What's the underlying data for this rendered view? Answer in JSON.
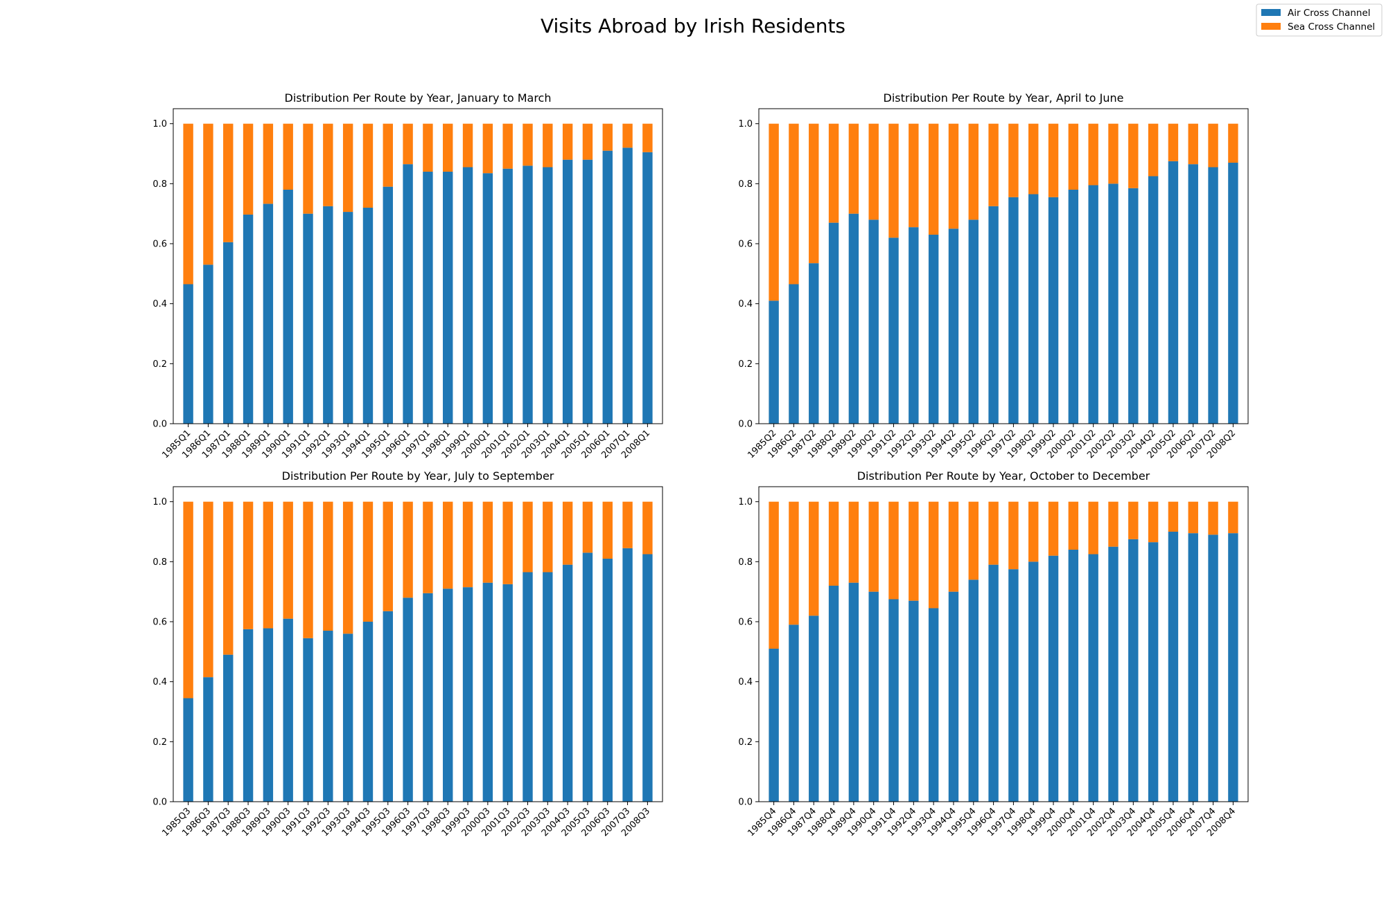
{
  "figure": {
    "title": "Visits Abroad by Irish Residents",
    "legend": {
      "placement": "top-right",
      "entries": [
        {
          "label": "Air Cross Channel",
          "color": "#1f77b4"
        },
        {
          "label": "Sea Cross Channel",
          "color": "#ff7f0e"
        }
      ]
    }
  },
  "chart_data": [
    {
      "type": "bar",
      "stacked": true,
      "title": "Distribution Per Route by Year, January to March",
      "categories": [
        "1985Q1",
        "1986Q1",
        "1987Q1",
        "1988Q1",
        "1989Q1",
        "1990Q1",
        "1991Q1",
        "1992Q1",
        "1993Q1",
        "1994Q1",
        "1995Q1",
        "1996Q1",
        "1997Q1",
        "1998Q1",
        "1999Q1",
        "2000Q1",
        "2001Q1",
        "2002Q1",
        "2003Q1",
        "2004Q1",
        "2005Q1",
        "2006Q1",
        "2007Q1",
        "2008Q1"
      ],
      "ylim": [
        0,
        1.05
      ],
      "yticks": [
        "0.0",
        "0.2",
        "0.4",
        "0.6",
        "0.8",
        "1.0"
      ],
      "series": [
        {
          "name": "Air Cross Channel",
          "color": "#1f77b4",
          "values": [
            0.465,
            0.53,
            0.605,
            0.697,
            0.733,
            0.78,
            0.7,
            0.725,
            0.706,
            0.72,
            0.79,
            0.865,
            0.84,
            0.84,
            0.855,
            0.835,
            0.85,
            0.86,
            0.855,
            0.88,
            0.88,
            0.91,
            0.92,
            0.905
          ]
        },
        {
          "name": "Sea Cross Channel",
          "color": "#ff7f0e",
          "values": [
            0.535,
            0.47,
            0.395,
            0.303,
            0.267,
            0.22,
            0.3,
            0.275,
            0.294,
            0.28,
            0.21,
            0.135,
            0.16,
            0.16,
            0.145,
            0.165,
            0.15,
            0.14,
            0.145,
            0.12,
            0.12,
            0.09,
            0.08,
            0.095
          ]
        }
      ]
    },
    {
      "type": "bar",
      "stacked": true,
      "title": "Distribution Per Route by Year, April to June",
      "categories": [
        "1985Q2",
        "1986Q2",
        "1987Q2",
        "1988Q2",
        "1989Q2",
        "1990Q2",
        "1991Q2",
        "1992Q2",
        "1993Q2",
        "1994Q2",
        "1995Q2",
        "1996Q2",
        "1997Q2",
        "1998Q2",
        "1999Q2",
        "2000Q2",
        "2001Q2",
        "2002Q2",
        "2003Q2",
        "2004Q2",
        "2005Q2",
        "2006Q2",
        "2007Q2",
        "2008Q2"
      ],
      "ylim": [
        0,
        1.05
      ],
      "yticks": [
        "0.0",
        "0.2",
        "0.4",
        "0.6",
        "0.8",
        "1.0"
      ],
      "series": [
        {
          "name": "Air Cross Channel",
          "color": "#1f77b4",
          "values": [
            0.41,
            0.465,
            0.535,
            0.67,
            0.7,
            0.68,
            0.62,
            0.655,
            0.63,
            0.65,
            0.68,
            0.725,
            0.755,
            0.765,
            0.755,
            0.78,
            0.795,
            0.8,
            0.785,
            0.825,
            0.875,
            0.865,
            0.855,
            0.87
          ]
        },
        {
          "name": "Sea Cross Channel",
          "color": "#ff7f0e",
          "values": [
            0.59,
            0.535,
            0.465,
            0.33,
            0.3,
            0.32,
            0.38,
            0.345,
            0.37,
            0.35,
            0.32,
            0.275,
            0.245,
            0.235,
            0.245,
            0.22,
            0.205,
            0.2,
            0.215,
            0.175,
            0.125,
            0.135,
            0.145,
            0.13
          ]
        }
      ]
    },
    {
      "type": "bar",
      "stacked": true,
      "title": "Distribution Per Route by Year, July to September",
      "categories": [
        "1985Q3",
        "1986Q3",
        "1987Q3",
        "1988Q3",
        "1989Q3",
        "1990Q3",
        "1991Q3",
        "1992Q3",
        "1993Q3",
        "1994Q3",
        "1995Q3",
        "1996Q3",
        "1997Q3",
        "1998Q3",
        "1999Q3",
        "2000Q3",
        "2001Q3",
        "2002Q3",
        "2003Q3",
        "2004Q3",
        "2005Q3",
        "2006Q3",
        "2007Q3",
        "2008Q3"
      ],
      "ylim": [
        0,
        1.05
      ],
      "yticks": [
        "0.0",
        "0.2",
        "0.4",
        "0.6",
        "0.8",
        "1.0"
      ],
      "series": [
        {
          "name": "Air Cross Channel",
          "color": "#1f77b4",
          "values": [
            0.345,
            0.415,
            0.49,
            0.575,
            0.578,
            0.61,
            0.545,
            0.57,
            0.56,
            0.6,
            0.635,
            0.68,
            0.695,
            0.71,
            0.715,
            0.73,
            0.725,
            0.765,
            0.765,
            0.79,
            0.83,
            0.81,
            0.845,
            0.825
          ]
        },
        {
          "name": "Sea Cross Channel",
          "color": "#ff7f0e",
          "values": [
            0.655,
            0.585,
            0.51,
            0.425,
            0.422,
            0.39,
            0.455,
            0.43,
            0.44,
            0.4,
            0.365,
            0.32,
            0.305,
            0.29,
            0.285,
            0.27,
            0.275,
            0.235,
            0.235,
            0.21,
            0.17,
            0.19,
            0.155,
            0.175
          ]
        }
      ]
    },
    {
      "type": "bar",
      "stacked": true,
      "title": "Distribution Per Route by Year, October to December",
      "categories": [
        "1985Q4",
        "1986Q4",
        "1987Q4",
        "1988Q4",
        "1989Q4",
        "1990Q4",
        "1991Q4",
        "1992Q4",
        "1993Q4",
        "1994Q4",
        "1995Q4",
        "1996Q4",
        "1997Q4",
        "1998Q4",
        "1999Q4",
        "2000Q4",
        "2001Q4",
        "2002Q4",
        "2003Q4",
        "2004Q4",
        "2005Q4",
        "2006Q4",
        "2007Q4",
        "2008Q4"
      ],
      "ylim": [
        0,
        1.05
      ],
      "yticks": [
        "0.0",
        "0.2",
        "0.4",
        "0.6",
        "0.8",
        "1.0"
      ],
      "series": [
        {
          "name": "Air Cross Channel",
          "color": "#1f77b4",
          "values": [
            0.51,
            0.59,
            0.62,
            0.72,
            0.73,
            0.7,
            0.675,
            0.67,
            0.645,
            0.7,
            0.74,
            0.79,
            0.775,
            0.8,
            0.82,
            0.84,
            0.825,
            0.85,
            0.875,
            0.865,
            0.9,
            0.895,
            0.89,
            0.895
          ]
        },
        {
          "name": "Sea Cross Channel",
          "color": "#ff7f0e",
          "values": [
            0.49,
            0.41,
            0.38,
            0.28,
            0.27,
            0.3,
            0.325,
            0.33,
            0.355,
            0.3,
            0.26,
            0.21,
            0.225,
            0.2,
            0.18,
            0.16,
            0.175,
            0.15,
            0.125,
            0.135,
            0.1,
            0.105,
            0.11,
            0.105
          ]
        }
      ]
    }
  ]
}
